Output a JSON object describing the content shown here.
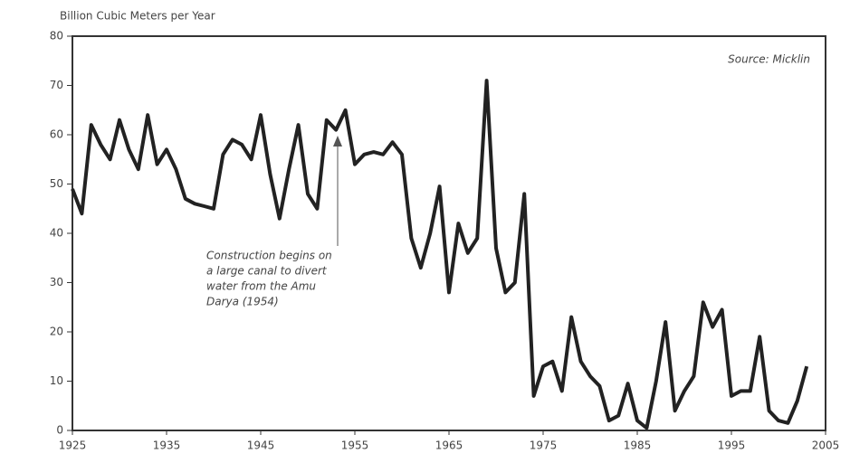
{
  "chart_data": {
    "type": "line",
    "ylabel": "Billion Cubic Meters per Year",
    "source": "Source: Micklin",
    "annotation": [
      "Construction begins on",
      "a large canal to divert",
      "water from the Amu",
      "Darya (1954)"
    ],
    "x": [
      1925,
      1926,
      1927,
      1928,
      1929,
      1930,
      1931,
      1932,
      1933,
      1934,
      1935,
      1936,
      1937,
      1938,
      1939,
      1940,
      1941,
      1942,
      1943,
      1944,
      1945,
      1946,
      1947,
      1948,
      1949,
      1950,
      1951,
      1952,
      1953,
      1954,
      1955,
      1956,
      1957,
      1958,
      1959,
      1960,
      1961,
      1962,
      1963,
      1964,
      1965,
      1966,
      1967,
      1968,
      1969,
      1970,
      1971,
      1972,
      1973,
      1974,
      1975,
      1976,
      1977,
      1978,
      1979,
      1980,
      1981,
      1982,
      1983,
      1984,
      1985,
      1986,
      1987,
      1988,
      1989,
      1990,
      1991,
      1992,
      1993,
      1994,
      1995,
      1996,
      1997,
      1998,
      1999,
      2000,
      2001,
      2002,
      2003
    ],
    "series": [
      {
        "color": "#222222",
        "values": [
          49,
          44,
          62,
          58,
          55,
          63,
          57,
          53,
          64,
          54,
          57,
          53,
          47,
          46,
          45.5,
          45,
          56,
          59,
          58,
          55,
          64,
          52,
          43,
          53,
          62,
          48,
          45,
          63,
          61,
          65,
          54,
          56,
          56.5,
          56,
          58.5,
          56,
          39,
          33,
          40,
          49.5,
          28,
          42,
          36,
          39,
          71,
          37,
          28,
          30,
          48,
          7,
          13,
          14,
          8,
          23,
          14,
          11,
          9,
          2,
          3,
          9.5,
          2,
          0.5,
          10,
          22,
          4,
          8,
          11,
          26,
          21,
          24.5,
          7,
          8,
          8,
          19,
          4,
          2,
          1.5,
          6,
          13
        ]
      }
    ],
    "xlim": [
      1925,
      2005
    ],
    "xticks": [
      1925,
      1935,
      1945,
      1955,
      1965,
      1975,
      1985,
      1995,
      2005
    ],
    "ylim": [
      0,
      80
    ],
    "yticks": [
      0,
      10,
      20,
      30,
      40,
      50,
      60,
      70,
      80
    ]
  }
}
